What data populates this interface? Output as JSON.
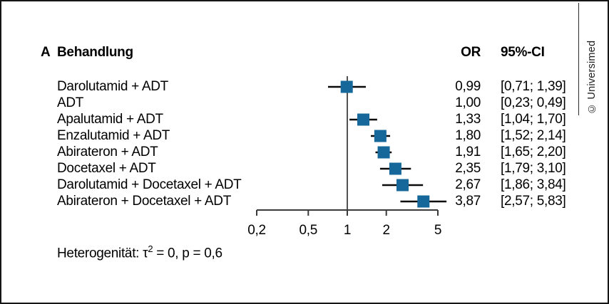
{
  "figure": {
    "panel_label": "A",
    "treatment_header": "Behandlung",
    "or_header": "OR",
    "ci_header": "95%-CI",
    "het_prefix": "Heterogenität: τ",
    "het_sup": "2",
    "het_rest": " = 0, p = 0,6",
    "credit": "© Universimed"
  },
  "chart_data": {
    "type": "forest",
    "x_scale": "log",
    "xlim": [
      0.2,
      5
    ],
    "reference_line": 1.0,
    "x_ticks": [
      "0,2",
      "0,5",
      "1",
      "2",
      "5"
    ],
    "x_tick_values": [
      0.2,
      0.5,
      1,
      2,
      5
    ],
    "columns": [
      "Behandlung",
      "OR",
      "95%-CI"
    ],
    "rows": [
      {
        "label": "Darolutamid + ADT",
        "or": 0.99,
        "ci_low": 0.71,
        "ci_high": 1.39,
        "or_text": "0,99",
        "ci_text": "[0,71; 1,39]",
        "marker": true
      },
      {
        "label": "ADT",
        "or": 1.0,
        "ci_low": 0.23,
        "ci_high": 0.49,
        "or_text": "1,00",
        "ci_text": "[0,23; 0,49]",
        "marker": false
      },
      {
        "label": "Apalutamid + ADT",
        "or": 1.33,
        "ci_low": 1.04,
        "ci_high": 1.7,
        "or_text": "1,33",
        "ci_text": "[1,04; 1,70]",
        "marker": true
      },
      {
        "label": "Enzalutamid + ADT",
        "or": 1.8,
        "ci_low": 1.52,
        "ci_high": 2.14,
        "or_text": "1,80",
        "ci_text": "[1,52; 2,14]",
        "marker": true
      },
      {
        "label": "Abirateron + ADT",
        "or": 1.91,
        "ci_low": 1.65,
        "ci_high": 2.2,
        "or_text": "1,91",
        "ci_text": "[1,65; 2,20]",
        "marker": true
      },
      {
        "label": "Docetaxel + ADT",
        "or": 2.35,
        "ci_low": 1.79,
        "ci_high": 3.1,
        "or_text": "2,35",
        "ci_text": "[1,79; 3,10]",
        "marker": true
      },
      {
        "label": "Darolutamid + Docetaxel + ADT",
        "or": 2.67,
        "ci_low": 1.86,
        "ci_high": 3.84,
        "or_text": "2,67",
        "ci_text": "[1,86; 3,84]",
        "marker": true
      },
      {
        "label": "Abirateron + Docetaxel + ADT",
        "or": 3.87,
        "ci_low": 2.57,
        "ci_high": 5.83,
        "or_text": "3,87",
        "ci_text": "[2,57; 5,83]",
        "marker": true
      }
    ],
    "heterogeneity": "Heterogenität: τ² = 0, p = 0,6",
    "colors": {
      "marker": "#16689a",
      "ci_line": "#0a0a0a",
      "reference_line": "#515254",
      "axis": "#3a3a3a",
      "text": "#000000",
      "border": "#151515"
    }
  }
}
